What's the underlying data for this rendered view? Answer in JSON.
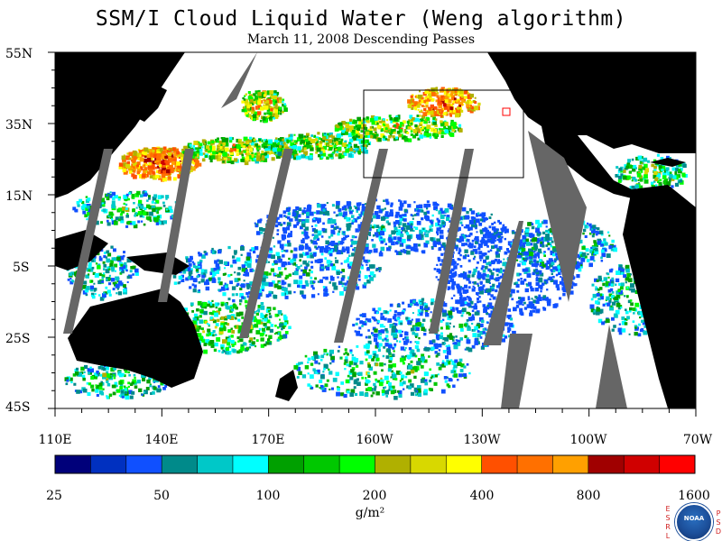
{
  "title": "SSM/I Cloud Liquid Water (Weng algorithm)",
  "subtitle": "March 11, 2008  Descending Passes",
  "lat_labels": [
    "55N",
    "35N",
    "15N",
    "5S",
    "25S",
    "45S"
  ],
  "lon_labels": [
    "110E",
    "140E",
    "170E",
    "160W",
    "130W",
    "100W",
    "70W"
  ],
  "colorbar": {
    "tick_labels": [
      "25",
      "50",
      "100",
      "200",
      "400",
      "800",
      "1600"
    ],
    "units": "g/m²",
    "colors": [
      "#00007a",
      "#0030c0",
      "#1050ff",
      "#008a8a",
      "#00c8c8",
      "#00ffff",
      "#00a000",
      "#00c800",
      "#00ff00",
      "#b0b000",
      "#d8d800",
      "#ffff00",
      "#ff5000",
      "#ff7000",
      "#ffa000",
      "#a00000",
      "#d00000",
      "#ff0000"
    ]
  },
  "map": {
    "ocean_color": "#ffffff",
    "land_color": "#000000",
    "gap_color": "#666666",
    "box_color": "#000000",
    "site_marker_color": "#ff0000"
  },
  "branding": {
    "left_letters": "ESRL",
    "right_letters": "PSD",
    "logo_text": "NOAA"
  }
}
